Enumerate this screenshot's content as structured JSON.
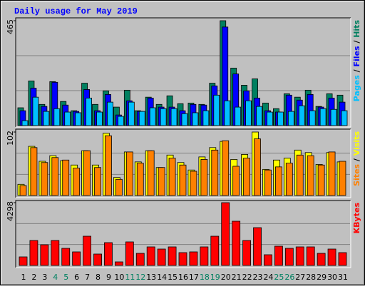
{
  "chart_data": [
    {
      "type": "bar",
      "title": "Daily usage for May 2019",
      "ylim": [
        0,
        465
      ],
      "yticks": [
        465
      ],
      "legend_separator": "/",
      "series": [
        {
          "name": "Hits",
          "color": "#008060",
          "values": [
            79,
            198,
            94,
            195,
            107,
            66,
            188,
            94,
            154,
            82,
            157,
            66,
            126,
            94,
            132,
            97,
            100,
            94,
            188,
            465,
            255,
            179,
            207,
            100,
            75,
            141,
            126,
            157,
            85,
            141,
            135
          ]
        },
        {
          "name": "Files",
          "color": "#0000ff",
          "values": [
            66,
            166,
            85,
            192,
            91,
            63,
            160,
            66,
            138,
            47,
            110,
            63,
            122,
            82,
            82,
            66,
            94,
            91,
            176,
            437,
            229,
            154,
            122,
            66,
            60,
            135,
            113,
            138,
            82,
            122,
            104
          ]
        },
        {
          "name": "Pages",
          "color": "#00c0ff",
          "values": [
            22,
            126,
            63,
            75,
            60,
            57,
            122,
            60,
            104,
            41,
            104,
            63,
            79,
            75,
            75,
            53,
            57,
            66,
            135,
            110,
            82,
            110,
            85,
            60,
            60,
            63,
            88,
            66,
            75,
            72,
            66
          ]
        }
      ]
    },
    {
      "type": "bar",
      "ylim": [
        0,
        102
      ],
      "yticks": [
        102
      ],
      "legend_separator": "/",
      "series": [
        {
          "name": "Visits",
          "color": "#ffff00",
          "values": [
            18,
            79,
            55,
            64,
            56,
            49,
            72,
            49,
            100,
            29,
            70,
            54,
            72,
            45,
            65,
            53,
            41,
            62,
            77,
            87,
            58,
            66,
            102,
            42,
            57,
            60,
            73,
            69,
            50,
            69,
            54
          ]
        },
        {
          "name": "Sites",
          "color": "#ff8000",
          "values": [
            16,
            77,
            53,
            61,
            57,
            44,
            72,
            45,
            96,
            26,
            70,
            52,
            72,
            45,
            60,
            49,
            39,
            58,
            73,
            88,
            47,
            60,
            91,
            41,
            46,
            52,
            65,
            64,
            49,
            70,
            55
          ]
        }
      ]
    },
    {
      "type": "bar",
      "ylim": [
        0,
        4298
      ],
      "yticks": [
        4298
      ],
      "series": [
        {
          "name": "KBytes",
          "color": "#ff0000",
          "values": [
            586,
            1709,
            1416,
            1709,
            1172,
            928,
            2002,
            781,
            1563,
            244,
            1612,
            830,
            1270,
            1123,
            1270,
            879,
            928,
            1270,
            2002,
            4298,
            3028,
            1709,
            2588,
            733,
            1319,
            1172,
            1270,
            1270,
            830,
            1123,
            879
          ]
        }
      ],
      "categories": [
        "1",
        "2",
        "3",
        "4",
        "5",
        "6",
        "7",
        "8",
        "9",
        "10",
        "11",
        "12",
        "13",
        "14",
        "15",
        "16",
        "17",
        "18",
        "19",
        "20",
        "21",
        "22",
        "23",
        "24",
        "25",
        "26",
        "27",
        "28",
        "29",
        "30",
        "31"
      ],
      "category_colors": [
        "#000000",
        "#000000",
        "#000000",
        "#008060",
        "#008060",
        "#000000",
        "#000000",
        "#000000",
        "#000000",
        "#000000",
        "#008060",
        "#008060",
        "#000000",
        "#000000",
        "#000000",
        "#000000",
        "#000000",
        "#008060",
        "#008060",
        "#000000",
        "#000000",
        "#000000",
        "#000000",
        "#000000",
        "#008060",
        "#008060",
        "#000000",
        "#000000",
        "#000000",
        "#000000",
        "#000000"
      ]
    }
  ]
}
